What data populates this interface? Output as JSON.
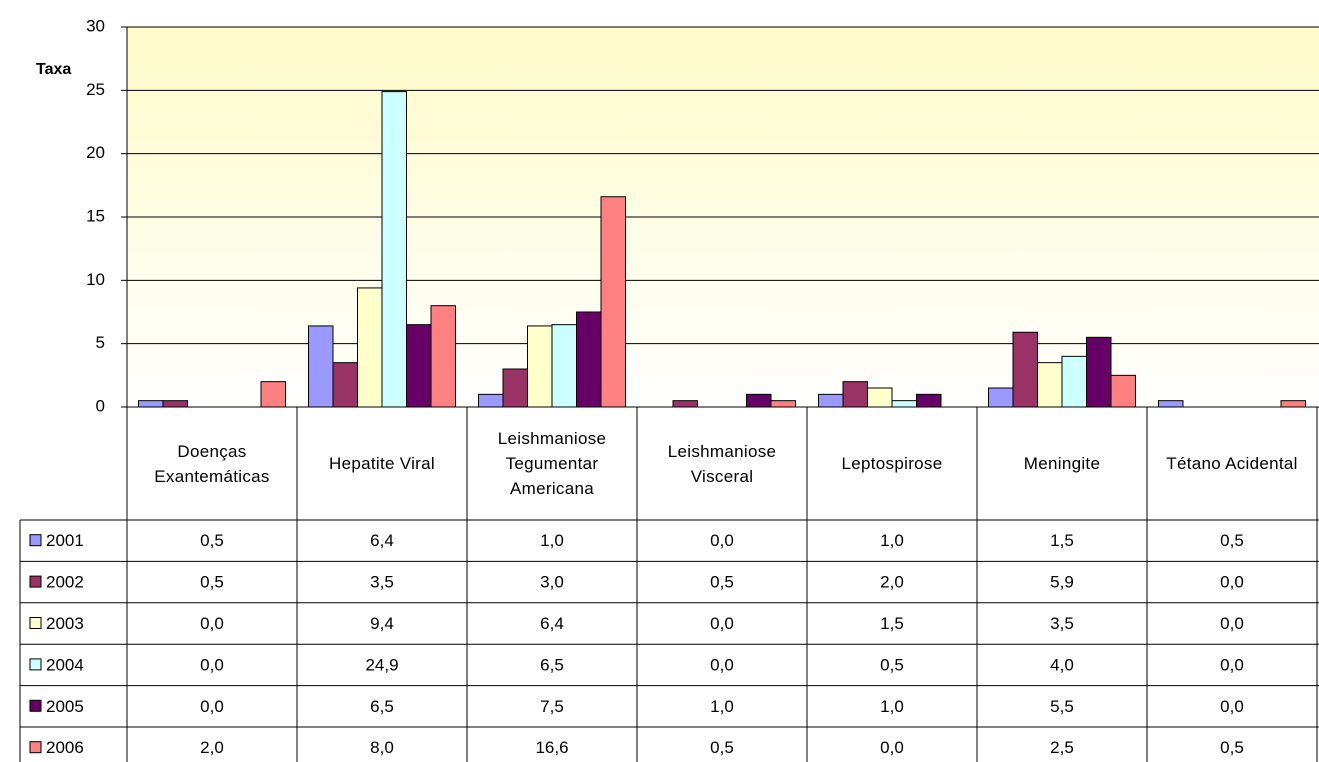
{
  "chart_data": {
    "type": "bar",
    "y_label": "Taxa",
    "categories": [
      "Doenças Exantemáticas",
      "Hepatite Viral",
      "Leishmaniose Tegumentar Americana",
      "Leishmaniose Visceral",
      "Leptospirose",
      "Meningite",
      "Tétano Acidental"
    ],
    "series": [
      {
        "name": "2001",
        "color": "#9999ff",
        "values": [
          0.5,
          6.4,
          1.0,
          0.0,
          1.0,
          1.5,
          0.5
        ],
        "value_labels": [
          "0,5",
          "6,4",
          "1,0",
          "0,0",
          "1,0",
          "1,5",
          "0,5"
        ]
      },
      {
        "name": "2002",
        "color": "#993366",
        "values": [
          0.5,
          3.5,
          3.0,
          0.5,
          2.0,
          5.9,
          0.0
        ],
        "value_labels": [
          "0,5",
          "3,5",
          "3,0",
          "0,5",
          "2,0",
          "5,9",
          "0,0"
        ]
      },
      {
        "name": "2003",
        "color": "#ffffcc",
        "values": [
          0.0,
          9.4,
          6.4,
          0.0,
          1.5,
          3.5,
          0.0
        ],
        "value_labels": [
          "0,0",
          "9,4",
          "6,4",
          "0,0",
          "1,5",
          "3,5",
          "0,0"
        ]
      },
      {
        "name": "2004",
        "color": "#ccffff",
        "values": [
          0.0,
          24.9,
          6.5,
          0.0,
          0.5,
          4.0,
          0.0
        ],
        "value_labels": [
          "0,0",
          "24,9",
          "6,5",
          "0,0",
          "0,5",
          "4,0",
          "0,0"
        ]
      },
      {
        "name": "2005",
        "color": "#660066",
        "values": [
          0.0,
          6.5,
          7.5,
          1.0,
          1.0,
          5.5,
          0.0
        ],
        "value_labels": [
          "0,0",
          "6,5",
          "7,5",
          "1,0",
          "1,0",
          "5,5",
          "0,0"
        ]
      },
      {
        "name": "2006",
        "color": "#ff8080",
        "values": [
          2.0,
          8.0,
          16.6,
          0.5,
          0.0,
          2.5,
          0.5
        ],
        "value_labels": [
          "2,0",
          "8,0",
          "16,6",
          "0,5",
          "0,0",
          "2,5",
          "0,5"
        ]
      }
    ],
    "ylim": [
      0,
      30
    ],
    "yticks": [
      0,
      5,
      10,
      15,
      20,
      25,
      30
    ],
    "grid": true
  }
}
